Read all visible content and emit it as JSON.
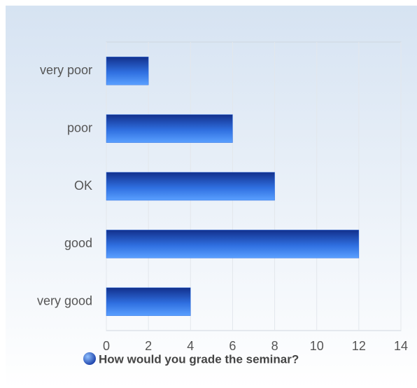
{
  "chart_data": {
    "type": "bar",
    "orientation": "horizontal",
    "categories": [
      "very poor",
      "poor",
      "OK",
      "good",
      "very good"
    ],
    "series": [
      {
        "name": "How would you grade the seminar?",
        "color": "#2f6fe0",
        "values": [
          2,
          6,
          8,
          12,
          4
        ]
      }
    ],
    "xlim": [
      0,
      14
    ],
    "xticks": [
      0,
      2,
      4,
      6,
      8,
      10,
      12,
      14
    ],
    "grid": true,
    "legend": "bottom"
  }
}
